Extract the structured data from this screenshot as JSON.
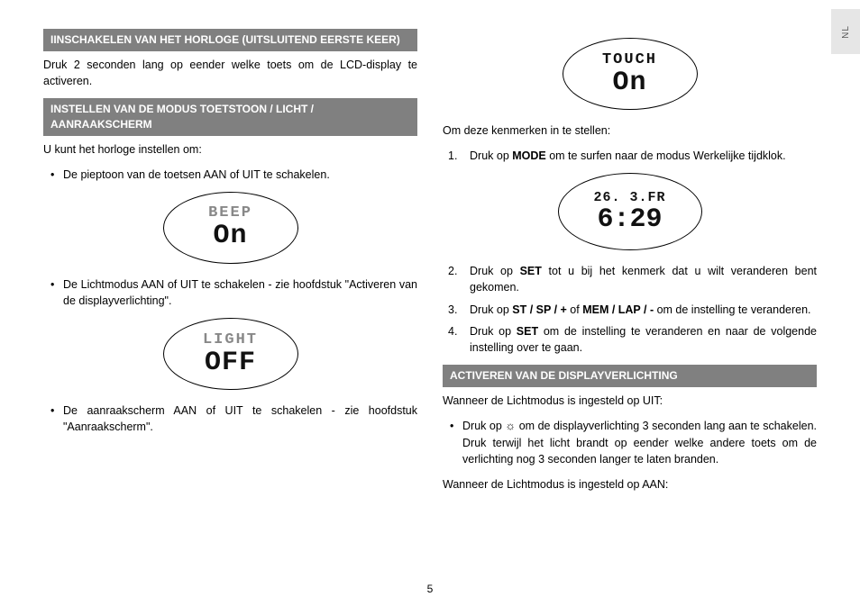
{
  "lang_tab": "NL",
  "page_number": "5",
  "col1": {
    "header1": "IINSCHAKELEN VAN HET HORLOGE (UITSLUITEND EERSTE KEER)",
    "para1": "Druk 2 seconden lang op eender welke toets om de LCD-display te activeren.",
    "header2": "INSTELLEN VAN DE MODUS TOETSTOON / LICHT  / AANRAAKSCHERM",
    "para2": "U kunt het horloge instellen om:",
    "bullet1": "De pieptoon van de toetsen AAN of UIT te schakelen.",
    "bullet2": "De Lichtmodus AAN of UIT te schakelen - zie hoofdstuk \"Activeren van de displayverlichting\".",
    "bullet3": "De aanraakscherm AAN of UIT te schakelen - zie hoofdstuk \"Aanraakscherm\".",
    "lcd_beep_top": "BEEP",
    "lcd_beep_bottom": "On",
    "lcd_light_top": "LIGHT",
    "lcd_light_bottom": "OFF"
  },
  "col2": {
    "lcd_touch_top": "TOUCH",
    "lcd_touch_bottom": "On",
    "para1": "Om deze kenmerken in te stellen:",
    "step1_a": "Druk op ",
    "step1_bold": "MODE",
    "step1_b": " om te surfen naar de modus Werkelijke tijdklok.",
    "lcd_time_top": "26. 3.FR",
    "lcd_time_main": "6:29",
    "step2_a": "Druk op ",
    "step2_bold": "SET",
    "step2_b": " tot u bij het kenmerk dat u wilt veranderen bent gekomen.",
    "step3_a": "Druk op ",
    "step3_bold1": "ST / SP / +",
    "step3_mid": " of ",
    "step3_bold2": "MEM / LAP / -",
    "step3_b": " om de instelling te veranderen.",
    "step4_a": "Druk op ",
    "step4_bold": "SET",
    "step4_b": " om de instelling te veranderen en naar de volgende instelling over te gaan.",
    "header3": "ACTIVEREN VAN DE DISPLAYVERLICHTING",
    "para3": "Wanneer de Lichtmodus is ingesteld op UIT:",
    "bullet4_a": "Druk op ",
    "bullet4_b": " om de displayverlichting 3 seconden lang aan te schakelen. Druk terwijl het licht brandt op eender welke andere toets om de verlichting nog 3 seconden langer te laten branden.",
    "para4": "Wanneer de Lichtmodus is ingesteld op AAN:",
    "light_icon": "☼"
  }
}
